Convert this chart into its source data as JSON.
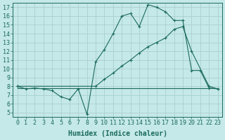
{
  "xlabel": "Humidex (Indice chaleur)",
  "bg_color": "#c5e8e8",
  "grid_color": "#aacfcf",
  "line_color": "#1a6b5a",
  "xlim": [
    -0.5,
    23.5
  ],
  "ylim": [
    4.5,
    17.5
  ],
  "xticks": [
    0,
    1,
    2,
    3,
    4,
    5,
    6,
    7,
    8,
    9,
    10,
    11,
    12,
    13,
    14,
    15,
    16,
    17,
    18,
    19,
    20,
    21,
    22,
    23
  ],
  "yticks": [
    5,
    6,
    7,
    8,
    9,
    10,
    11,
    12,
    13,
    14,
    15,
    16,
    17
  ],
  "line1_x": [
    0,
    1,
    2,
    3,
    4,
    5,
    6,
    7,
    8,
    9,
    10,
    11,
    12,
    13,
    14,
    15,
    16,
    17,
    18,
    19,
    20,
    21,
    22,
    23
  ],
  "line1_y": [
    8.0,
    7.7,
    7.8,
    7.7,
    7.5,
    6.8,
    6.5,
    7.7,
    4.8,
    10.8,
    12.2,
    14.0,
    16.0,
    16.3,
    14.8,
    17.3,
    17.0,
    16.5,
    15.5,
    15.5,
    9.8,
    9.8,
    7.8,
    7.7
  ],
  "line2_x": [
    0,
    9,
    10,
    11,
    12,
    13,
    14,
    15,
    16,
    17,
    18,
    19,
    20,
    22,
    23
  ],
  "line2_y": [
    8.0,
    8.0,
    8.8,
    9.5,
    10.3,
    11.0,
    11.8,
    12.5,
    13.0,
    13.5,
    14.5,
    14.8,
    12.0,
    8.0,
    7.7
  ],
  "line3_x": [
    0,
    23
  ],
  "line3_y": [
    7.8,
    7.8
  ],
  "fontsize_label": 7,
  "fontsize_tick": 6
}
